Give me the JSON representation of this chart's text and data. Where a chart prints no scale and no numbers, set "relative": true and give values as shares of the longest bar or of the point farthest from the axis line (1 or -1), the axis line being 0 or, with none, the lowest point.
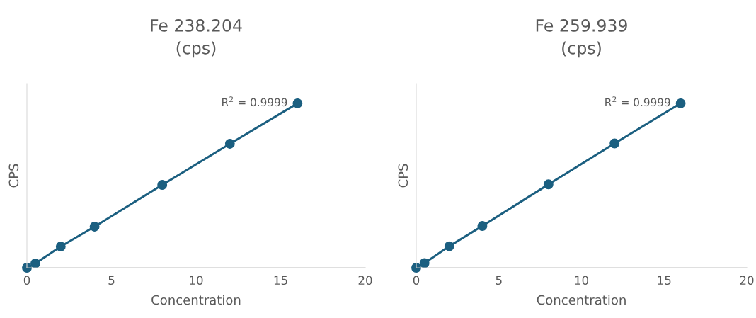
{
  "chart_data": [
    {
      "type": "line",
      "title": "Fe 238.204\n(cps)",
      "xlabel": "Concentration",
      "ylabel": "CPS",
      "relative": true,
      "x": [
        0,
        0.5,
        2,
        4,
        8,
        12,
        16
      ],
      "xlim": [
        0,
        20
      ],
      "xticks": [
        0,
        5,
        10,
        15,
        20
      ],
      "tick_labels": "x",
      "grid": false,
      "legend": false,
      "series": [
        {
          "color": "#1b5f80",
          "marker": "circle",
          "values": [
            0,
            0.026,
            0.129,
            0.25,
            0.504,
            0.754,
            1
          ]
        }
      ],
      "annotations": [
        {
          "text": "R$^{2}$ = 0.9999",
          "x": 16,
          "y": 1
        }
      ]
    },
    {
      "type": "line",
      "title": "Fe 259.939\n(cps)",
      "xlabel": "Concentration",
      "ylabel": "CPS",
      "relative": true,
      "x": [
        0,
        0.5,
        2,
        4,
        8,
        12,
        16
      ],
      "xlim": [
        0,
        20
      ],
      "xticks": [
        0,
        5,
        10,
        15,
        20
      ],
      "tick_labels": "x",
      "grid": false,
      "legend": false,
      "series": [
        {
          "color": "#1b5f80",
          "marker": "circle",
          "values": [
            0,
            0.028,
            0.131,
            0.254,
            0.507,
            0.756,
            1
          ]
        }
      ],
      "annotations": [
        {
          "text": "R$^{2}$ = 0.9999",
          "x": 16,
          "y": 1
        }
      ]
    }
  ]
}
